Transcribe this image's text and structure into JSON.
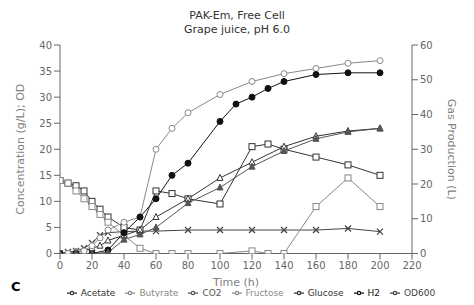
{
  "chart_data": {
    "type": "line",
    "title": "PAK-Em, Free Cell",
    "subtitle": "Grape juice, pH 6.0",
    "annotations": [
      "C"
    ],
    "xlabel": "Time (h)",
    "ylabel": "Concentration (g/L); OD",
    "y2label": "Gas Production (L)",
    "xlim": [
      0,
      220
    ],
    "xticks": [
      0,
      20,
      40,
      60,
      80,
      100,
      120,
      140,
      160,
      180,
      200,
      220
    ],
    "ylim": [
      0,
      40
    ],
    "yticks": [
      0,
      5,
      10,
      15,
      20,
      25,
      30,
      35,
      40
    ],
    "y2lim": [
      0,
      60
    ],
    "y2ticks": [
      0,
      10,
      20,
      30,
      40,
      50,
      60
    ],
    "grid": false,
    "legend": "bottom",
    "series": [
      {
        "name": "OD600",
        "color": "#444444",
        "marker": "x",
        "x": [
          0,
          5,
          10,
          15,
          20,
          25,
          30,
          40,
          50,
          60,
          80,
          100,
          120,
          140,
          160,
          180,
          200
        ],
        "values": [
          0,
          0.3,
          0.5,
          1.0,
          2.0,
          3.5,
          4.0,
          4.2,
          4.3,
          4.3,
          4.5,
          4.5,
          4.5,
          4.5,
          4.5,
          4.8,
          4.2
        ]
      },
      {
        "name": "Glucose",
        "color": "#333333",
        "marker": "open_square",
        "x": [
          0,
          5,
          10,
          15,
          20,
          25,
          30,
          40,
          50,
          60,
          70,
          80,
          100,
          120,
          130,
          140,
          160,
          180,
          200
        ],
        "values": [
          14.0,
          13.5,
          13.0,
          12.0,
          10.0,
          8.5,
          7.0,
          5.0,
          4.5,
          12.0,
          11.5,
          10.5,
          9.5,
          20.5,
          21.0,
          20.0,
          18.5,
          17.0,
          15.0
        ]
      },
      {
        "name": "Fructose",
        "color": "#888888",
        "marker": "open_square",
        "x": [
          0,
          5,
          10,
          15,
          20,
          25,
          30,
          40,
          50,
          60,
          70,
          80,
          100,
          120,
          130,
          140,
          160,
          180,
          200
        ],
        "values": [
          14.0,
          13.5,
          12.0,
          10.5,
          9.0,
          7.5,
          6.0,
          3.5,
          1.0,
          0.0,
          0.0,
          0.0,
          0.0,
          0.5,
          0.0,
          0.0,
          9.0,
          14.5,
          9.0
        ]
      },
      {
        "name": "Acetate",
        "color": "#333333",
        "marker": "open_triangle",
        "x": [
          0,
          5,
          10,
          15,
          20,
          25,
          30,
          40,
          50,
          60,
          80,
          100,
          120,
          140,
          160,
          180,
          200
        ],
        "values": [
          0,
          0.0,
          0.3,
          0.5,
          1.0,
          1.5,
          2.5,
          3.5,
          4.5,
          7.0,
          10.5,
          14.5,
          17.5,
          20.5,
          22.5,
          23.5,
          24.0
        ]
      },
      {
        "name": "Butyrate",
        "color": "#888888",
        "marker": "open_circle",
        "x": [
          0,
          5,
          10,
          15,
          20,
          25,
          30,
          40,
          50,
          60,
          70,
          80,
          100,
          120,
          140,
          160,
          180,
          200
        ],
        "values": [
          0,
          0.0,
          0.2,
          0.5,
          1.5,
          3.0,
          4.5,
          6.0,
          7.0,
          20.0,
          24.0,
          27.0,
          30.5,
          33.0,
          34.5,
          35.5,
          36.5,
          37.0
        ]
      },
      {
        "name": "H2",
        "color": "#111111",
        "marker": "circle",
        "axis": "y2",
        "x": [
          0,
          10,
          20,
          30,
          40,
          50,
          60,
          70,
          80,
          100,
          110,
          120,
          130,
          140,
          160,
          180,
          200
        ],
        "values": [
          0,
          0,
          0,
          1.0,
          6.0,
          10.5,
          15.75,
          22.5,
          26.0,
          38.0,
          43.0,
          45.0,
          47.5,
          49.5,
          51.5,
          52.0,
          52.0
        ]
      },
      {
        "name": "CO2",
        "color": "#555555",
        "marker": "triangle",
        "axis": "y2",
        "x": [
          0,
          10,
          20,
          30,
          40,
          50,
          60,
          80,
          100,
          120,
          140,
          160,
          180,
          200
        ],
        "values": [
          0,
          0,
          0,
          0.3,
          4.0,
          5.5,
          7.5,
          14.5,
          19.0,
          25.0,
          29.5,
          33.0,
          35.0,
          36.0
        ]
      }
    ]
  }
}
